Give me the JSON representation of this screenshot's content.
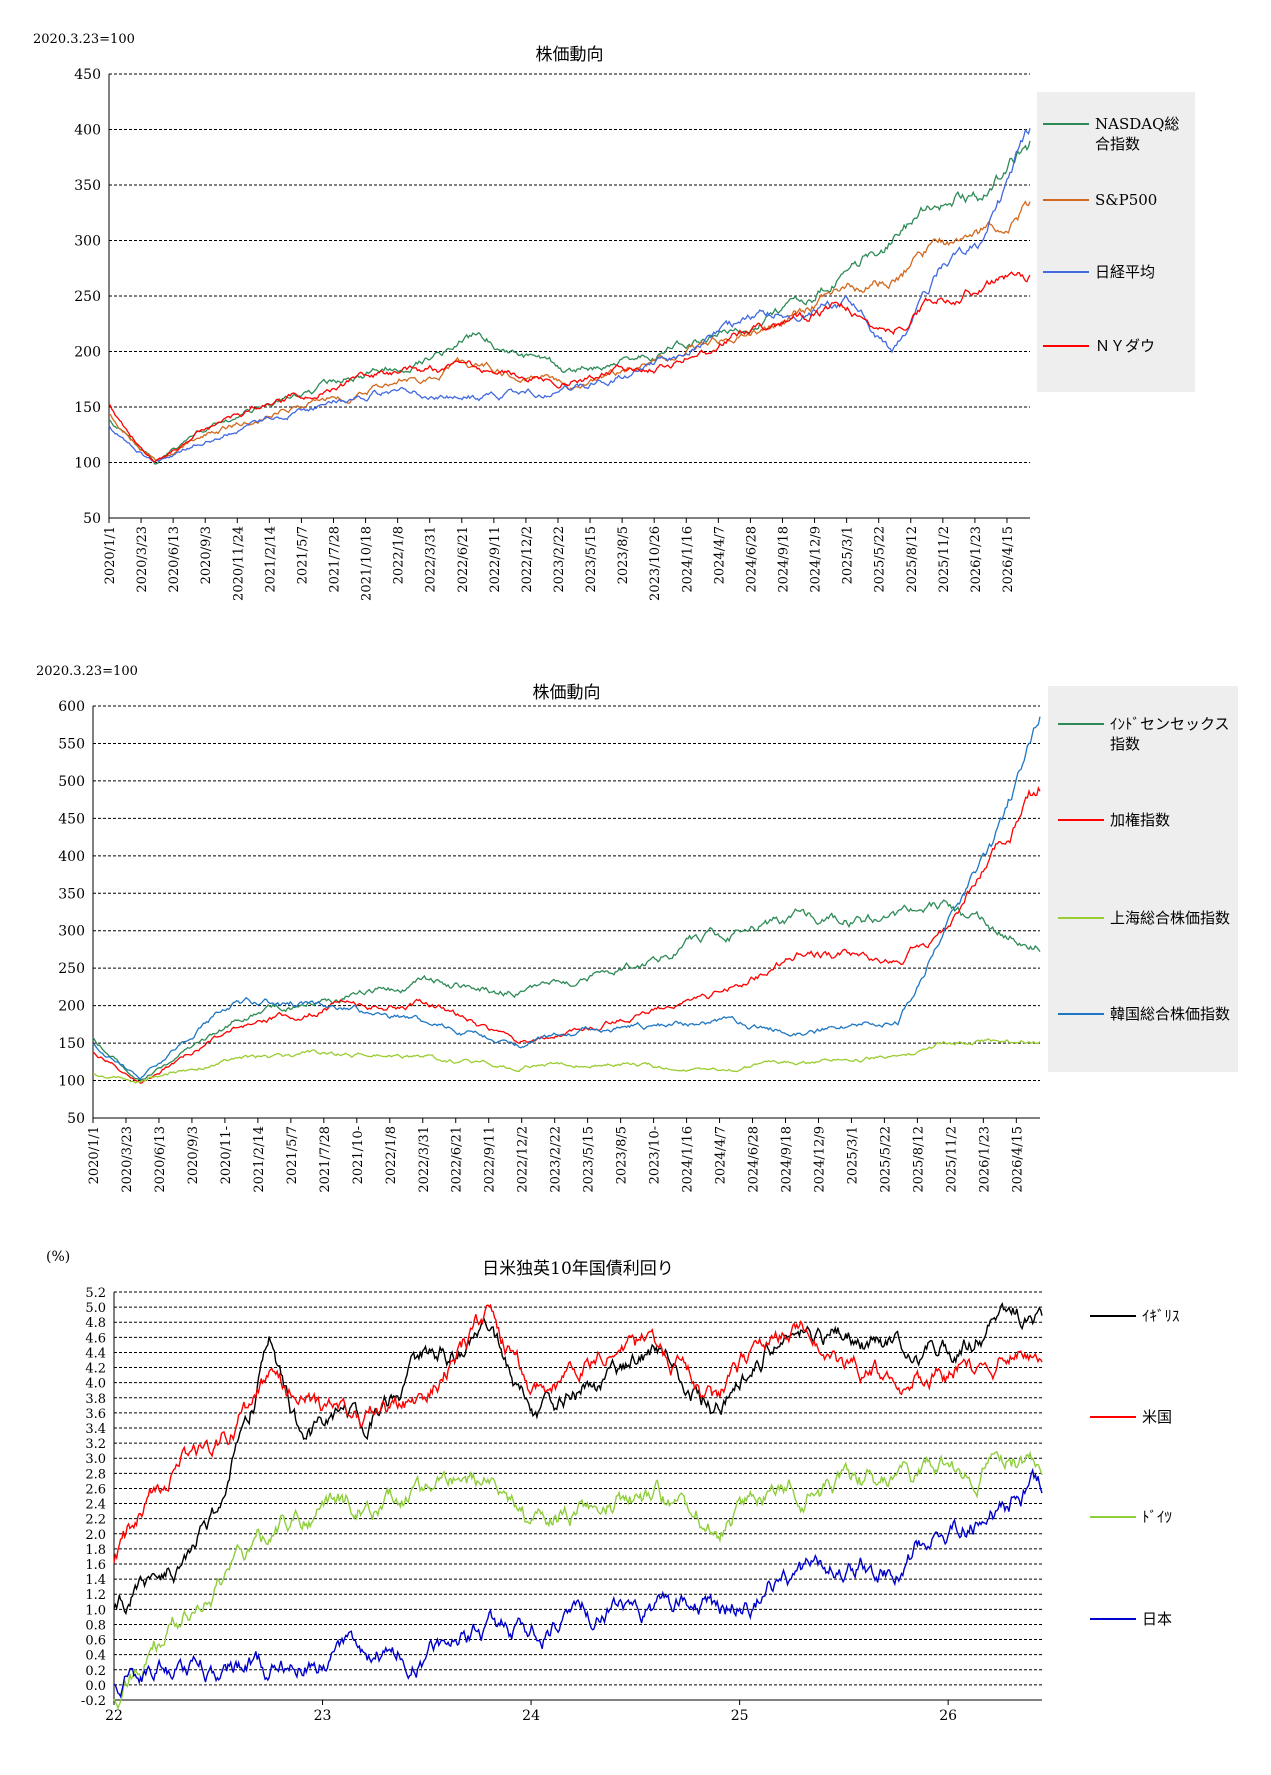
{
  "charts": {
    "us_jp": {
      "index_note": "2020.3.23=100",
      "title": "株価動向",
      "ylim": [
        50,
        450
      ],
      "yticks": [
        50,
        100,
        150,
        200,
        250,
        300,
        350,
        400,
        450
      ],
      "xticks": [
        "2020/1/1",
        "2020/3/23",
        "2020/6/13",
        "2020/9/3",
        "2020/11/24",
        "2021/2/14",
        "2021/5/7",
        "2021/7/28",
        "2021/10/18",
        "2022/1/8",
        "2022/3/31",
        "2022/6/21",
        "2022/9/11",
        "2022/12/2",
        "2023/2/22",
        "2023/5/15",
        "2023/8/5",
        "2023/10/26",
        "2024/1/16",
        "2024/4/7",
        "2024/6/28",
        "2024/9/18",
        "2024/12/9",
        "2025/3/1",
        "2025/5/22",
        "2025/8/12",
        "2025/11/2",
        "2026/1/23",
        "2026/4/15"
      ],
      "series": [
        {
          "name": "NASDAQ総合指数",
          "color": "#2e8b57"
        },
        {
          "name": "S&P500",
          "color": "#d2691e"
        },
        {
          "name": "日経平均",
          "color": "#4169e1"
        },
        {
          "name": "ＮＹダウ",
          "color": "#ff0000"
        }
      ]
    },
    "asia": {
      "index_note": "2020.3.23=100",
      "title": "株価動向",
      "ylim": [
        50,
        600
      ],
      "yticks": [
        50,
        100,
        150,
        200,
        250,
        300,
        350,
        400,
        450,
        500,
        550,
        600
      ],
      "xticks": [
        "2020/1/1",
        "2020/3/23",
        "2020/6/13",
        "2020/9/3",
        "2020/11-",
        "2021/2/14",
        "2021/5/7",
        "2021/7/28",
        "2021/10-",
        "2022/1/8",
        "2022/3/31",
        "2022/6/21",
        "2022/9/11",
        "2022/12/2",
        "2023/2/22",
        "2023/5/15",
        "2023/8/5",
        "2023/10-",
        "2024/1/16",
        "2024/4/7",
        "2024/6/28",
        "2024/9/18",
        "2024/12/9",
        "2025/3/1",
        "2025/5/22",
        "2025/8/12",
        "2025/11/2",
        "2026/1/23",
        "2026/4/15"
      ],
      "series": [
        {
          "name": "ｲﾝﾄﾞセンセックス指数",
          "color": "#2e8b57"
        },
        {
          "name": "加権指数",
          "color": "#ff0000"
        },
        {
          "name": "上海総合株価指数",
          "color": "#9acd32"
        },
        {
          "name": "韓国総合株価指数",
          "color": "#1f77c4"
        }
      ]
    },
    "yields": {
      "unit_note": "(%)",
      "title": "日米独英10年国債利回り",
      "ylim": [
        -0.2,
        5.2
      ],
      "yticks": [
        "-0.2",
        "0.0",
        "0.2",
        "0.4",
        "0.6",
        "0.8",
        "1.0",
        "1.2",
        "1.4",
        "1.6",
        "1.8",
        "2.0",
        "2.2",
        "2.4",
        "2.6",
        "2.8",
        "3.0",
        "3.2",
        "3.4",
        "3.6",
        "3.8",
        "4.0",
        "4.2",
        "4.4",
        "4.6",
        "4.8",
        "5.0",
        "5.2"
      ],
      "xticks": [
        "22",
        "23",
        "24",
        "25",
        "26"
      ],
      "series": [
        {
          "name": "ｲｷﾞﾘｽ",
          "color": "#000000"
        },
        {
          "name": "米国",
          "color": "#ff0000"
        },
        {
          "name": "ﾄﾞｲﾂ",
          "color": "#8fce3c"
        },
        {
          "name": "日本",
          "color": "#0000cc"
        }
      ]
    }
  },
  "chart_data": [
    {
      "type": "line",
      "title": "株価動向",
      "ylim": [
        50,
        450
      ],
      "x_range": [
        "2020/1/1",
        "2026/6"
      ],
      "series": [
        {
          "name": "NASDAQ総合指数",
          "x": [
            0,
            0.05,
            0.1,
            0.2,
            0.3,
            0.4,
            0.5,
            0.6,
            0.7,
            0.8,
            0.85,
            0.9,
            0.95,
            1
          ],
          "values": [
            140,
            100,
            130,
            160,
            185,
            215,
            180,
            200,
            225,
            270,
            300,
            335,
            345,
            385
          ]
        },
        {
          "name": "S&P500",
          "x": [
            0,
            0.05,
            0.1,
            0.2,
            0.3,
            0.4,
            0.5,
            0.6,
            0.7,
            0.8,
            0.85,
            0.9,
            0.95,
            1
          ],
          "values": [
            145,
            100,
            125,
            150,
            170,
            190,
            170,
            190,
            220,
            255,
            265,
            300,
            305,
            330
          ]
        },
        {
          "name": "日経平均",
          "x": [
            0,
            0.05,
            0.1,
            0.2,
            0.3,
            0.4,
            0.5,
            0.6,
            0.7,
            0.8,
            0.85,
            0.9,
            0.95,
            1
          ],
          "values": [
            135,
            100,
            120,
            145,
            165,
            160,
            165,
            190,
            230,
            245,
            200,
            270,
            300,
            390
          ]
        },
        {
          "name": "ＮＹダウ",
          "x": [
            0,
            0.05,
            0.1,
            0.2,
            0.3,
            0.4,
            0.5,
            0.6,
            0.7,
            0.8,
            0.85,
            0.9,
            0.95,
            1
          ],
          "values": [
            155,
            100,
            130,
            160,
            180,
            185,
            175,
            185,
            220,
            240,
            215,
            250,
            260,
            270
          ]
        }
      ]
    },
    {
      "type": "line",
      "title": "株価動向",
      "ylim": [
        50,
        600
      ],
      "x_range": [
        "2020/1/1",
        "2026/6"
      ],
      "series": [
        {
          "name": "ｲﾝﾄﾞセンセックス指数",
          "x": [
            0,
            0.05,
            0.15,
            0.25,
            0.35,
            0.45,
            0.55,
            0.65,
            0.75,
            0.85,
            0.9,
            0.95,
            1
          ],
          "values": [
            160,
            100,
            180,
            210,
            230,
            220,
            245,
            290,
            320,
            310,
            330,
            300,
            285
          ]
        },
        {
          "name": "加権指数",
          "x": [
            0,
            0.05,
            0.15,
            0.25,
            0.35,
            0.45,
            0.55,
            0.65,
            0.75,
            0.85,
            0.9,
            0.95,
            1
          ],
          "values": [
            140,
            100,
            170,
            200,
            205,
            150,
            180,
            210,
            270,
            260,
            300,
            400,
            490
          ]
        },
        {
          "name": "上海総合株価指数",
          "x": [
            0,
            0.05,
            0.15,
            0.25,
            0.35,
            0.45,
            0.55,
            0.65,
            0.75,
            0.85,
            0.9,
            0.95,
            1
          ],
          "values": [
            110,
            100,
            130,
            135,
            130,
            120,
            125,
            110,
            125,
            130,
            150,
            155,
            150
          ]
        },
        {
          "name": "韓国総合株価指数",
          "x": [
            0,
            0.05,
            0.15,
            0.25,
            0.35,
            0.45,
            0.55,
            0.65,
            0.75,
            0.85,
            0.9,
            0.95,
            1
          ],
          "values": [
            150,
            100,
            210,
            200,
            175,
            150,
            170,
            180,
            165,
            180,
            300,
            400,
            560
          ]
        }
      ]
    },
    {
      "type": "line",
      "title": "日米独英10年国債利回り",
      "ylim": [
        -0.2,
        5.2
      ],
      "x_range": [
        22,
        26.45
      ],
      "series": [
        {
          "name": "ｲｷﾞﾘｽ",
          "x": [
            22,
            22.3,
            22.5,
            22.75,
            22.9,
            23.2,
            23.5,
            23.8,
            24,
            24.3,
            24.6,
            24.9,
            25.2,
            25.5,
            25.8,
            26,
            26.2,
            26.45
          ],
          "values": [
            1.1,
            1.6,
            2.4,
            4.4,
            3.2,
            3.5,
            4.3,
            4.5,
            3.6,
            4.0,
            4.4,
            3.7,
            4.7,
            4.6,
            4.4,
            4.5,
            4.7,
            4.9
          ]
        },
        {
          "name": "米国",
          "x": [
            22,
            22.3,
            22.5,
            22.75,
            22.9,
            23.2,
            23.5,
            23.8,
            24,
            24.3,
            24.6,
            24.9,
            25.2,
            25.5,
            25.8,
            26,
            26.2,
            26.45
          ],
          "values": [
            1.7,
            2.9,
            3.2,
            4.0,
            3.7,
            3.5,
            3.8,
            4.9,
            3.9,
            4.3,
            4.5,
            3.7,
            4.7,
            4.3,
            4.1,
            4.1,
            4.3,
            4.6
          ]
        },
        {
          "name": "ﾄﾞｲﾂ",
          "x": [
            22,
            22.3,
            22.5,
            22.75,
            22.9,
            23.2,
            23.5,
            23.8,
            24,
            24.3,
            24.6,
            24.9,
            25.2,
            25.5,
            25.8,
            26,
            26.2,
            26.45
          ],
          "values": [
            -0.1,
            0.8,
            1.4,
            2.0,
            2.2,
            2.4,
            2.5,
            2.8,
            2.1,
            2.4,
            2.5,
            2.1,
            2.6,
            2.6,
            2.7,
            2.8,
            2.9,
            3.0
          ]
        },
        {
          "name": "日本",
          "x": [
            22,
            22.3,
            22.5,
            22.75,
            22.9,
            23.2,
            23.5,
            23.8,
            24,
            24.3,
            24.6,
            24.9,
            25.2,
            25.5,
            25.8,
            26,
            26.2,
            26.45
          ],
          "values": [
            0.1,
            0.25,
            0.25,
            0.25,
            0.3,
            0.45,
            0.5,
            0.8,
            0.7,
            0.9,
            1.05,
            0.95,
            1.35,
            1.5,
            1.65,
            2.1,
            2.2,
            2.65
          ]
        }
      ]
    }
  ]
}
